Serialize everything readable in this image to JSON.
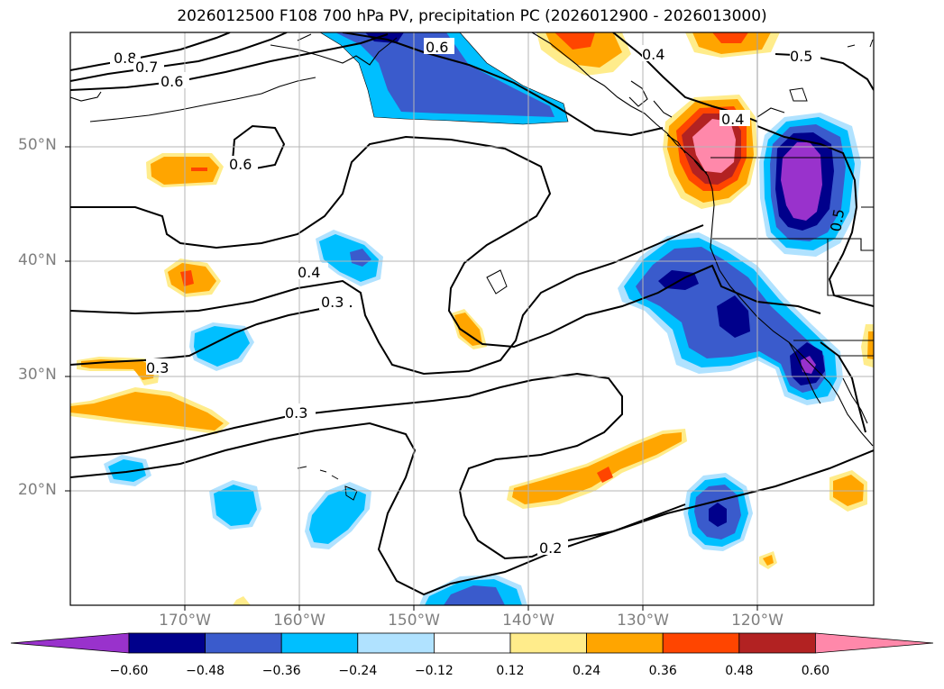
{
  "title": "2026012500 F108 700 hPa PV, precipitation PC (2026012900 - 2026013000)",
  "map": {
    "lat_labels": [
      "50°N",
      "40°N",
      "30°N",
      "20°N"
    ],
    "lon_labels": [
      "170°W",
      "160°W",
      "150°W",
      "140°W",
      "130°W",
      "120°W"
    ],
    "contour_labels": [
      "0.8",
      "0.7",
      "0.6",
      "0.6",
      "0.6",
      "0.4",
      "0.4",
      "0.5",
      "0.4",
      "0.3",
      "0.3",
      "0.3",
      "0.2",
      "0.5"
    ]
  },
  "colorbar": {
    "tick_labels": [
      "−0.60",
      "−0.48",
      "−0.36",
      "−0.24",
      "−0.12",
      "0.12",
      "0.24",
      "0.36",
      "0.48",
      "0.60"
    ],
    "colors": [
      "#9932cc",
      "#00008b",
      "#3a5bcc",
      "#00bfff",
      "#b0e2ff",
      "#ffffff",
      "#ffec8b",
      "#ffa500",
      "#ff4500",
      "#b22222",
      "#ff88aa"
    ]
  },
  "colors": {
    "purple": "#9932cc",
    "navy": "#00008b",
    "royal": "#3a5bcc",
    "sky": "#00bfff",
    "light_blue": "#b0e2ff",
    "yellow": "#ffec8b",
    "orange": "#ffa500",
    "orange_red": "#ff4500",
    "brick": "#b22222",
    "pink": "#ff88aa"
  }
}
